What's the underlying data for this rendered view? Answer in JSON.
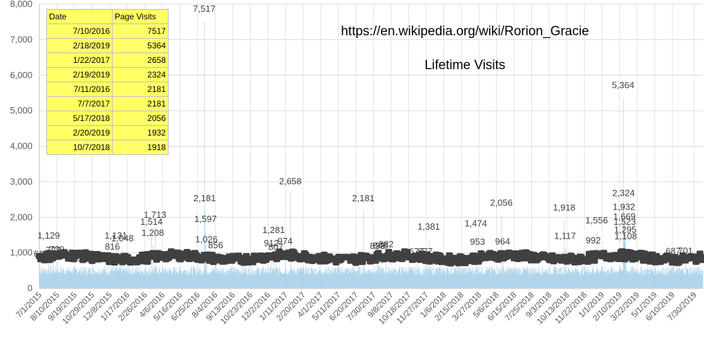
{
  "chart_data": {
    "type": "bar",
    "title": "https://en.wikipedia.org/wiki/Rorion_Gracie",
    "subtitle": "Lifetime Visits",
    "ylim": [
      0,
      8000
    ],
    "y_ticks": [
      "0",
      "1,000",
      "2,000",
      "3,000",
      "4,000",
      "5,000",
      "6,000",
      "7,000",
      "8,000"
    ],
    "x_range": [
      "7/1/2015",
      "8/18/2019"
    ],
    "x_tick_labels": [
      "7/1/2015",
      "8/10/2015",
      "9/19/2015",
      "10/29/2015",
      "12/8/2015",
      "1/17/2016",
      "2/26/2016",
      "4/6/2016",
      "5/16/2016",
      "6/25/2016",
      "8/4/2016",
      "9/13/2016",
      "10/23/2016",
      "12/2/2016",
      "1/11/2017",
      "2/20/2017",
      "4/1/2017",
      "5/11/2017",
      "6/20/2017",
      "7/30/2017",
      "9/8/2017",
      "10/18/2017",
      "11/27/2017",
      "1/6/2018",
      "2/15/2018",
      "3/27/2018",
      "5/6/2018",
      "6/15/2018",
      "7/25/2018",
      "9/3/2018",
      "10/13/2018",
      "11/22/2018",
      "1/1/2019",
      "2/10/2019",
      "3/22/2019",
      "5/1/2019",
      "6/10/2019",
      "7/30/2019"
    ],
    "baseline_visits": 500,
    "series": [
      {
        "color": "#a9d1ea",
        "peaks": [
          {
            "date": "7/10/2016",
            "value": 7517,
            "label": "7,517"
          },
          {
            "date": "2/18/2019",
            "value": 5364,
            "label": "5,364"
          },
          {
            "date": "1/22/2017",
            "value": 2658,
            "label": "2,658"
          },
          {
            "date": "2/19/2019",
            "value": 2324,
            "label": "2,324"
          },
          {
            "date": "7/11/2016",
            "value": 2181,
            "label": "2,181"
          },
          {
            "date": "7/7/2017",
            "value": 2181,
            "label": "2,181"
          },
          {
            "date": "5/17/2018",
            "value": 2056,
            "label": "2,056"
          },
          {
            "date": "2/20/2019",
            "value": 1932,
            "label": "1,932"
          },
          {
            "date": "10/7/2018",
            "value": 1918,
            "label": "1,918"
          },
          {
            "date": "3/20/2016",
            "value": 1713,
            "label": "1,713"
          },
          {
            "date": "2/21/2019",
            "value": 1669,
            "label": "1,669"
          },
          {
            "date": "7/13/2016",
            "value": 1597,
            "label": "1,597"
          },
          {
            "date": "12/20/2018",
            "value": 1556,
            "label": "1,556"
          },
          {
            "date": "2/22/2019",
            "value": 1523,
            "label": "1,523"
          },
          {
            "date": "3/12/2016",
            "value": 1514,
            "label": "1,514"
          },
          {
            "date": "3/20/2018",
            "value": 1474,
            "label": "1,474"
          },
          {
            "date": "12/3/2017",
            "value": 1381,
            "label": "1,381"
          },
          {
            "date": "2/23/2019",
            "value": 1295,
            "label": "1,295"
          },
          {
            "date": "12/15/2016",
            "value": 1281,
            "label": "1,281"
          },
          {
            "date": "3/15/2016",
            "value": 1208,
            "label": "1,208"
          },
          {
            "date": "7/22/2015",
            "value": 1129,
            "label": "1,129"
          },
          {
            "date": "10/9/2018",
            "value": 1117,
            "label": "1,117"
          },
          {
            "date": "12/22/2015",
            "value": 1131,
            "label": "1,131"
          },
          {
            "date": "2/24/2019",
            "value": 1108,
            "label": "1,108"
          },
          {
            "date": "1/6/2016",
            "value": 1048,
            "label": "1,048"
          },
          {
            "date": "7/15/2016",
            "value": 1026,
            "label": "1,026"
          },
          {
            "date": "12/12/2018",
            "value": 992,
            "label": "992"
          },
          {
            "date": "5/20/2018",
            "value": 964,
            "label": "964"
          },
          {
            "date": "3/24/2018",
            "value": 953,
            "label": "953"
          },
          {
            "date": "1/10/2017",
            "value": 974,
            "label": "974"
          },
          {
            "date": "12/10/2016",
            "value": 912,
            "label": "912"
          },
          {
            "date": "8/28/2017",
            "value": 882,
            "label": "882"
          },
          {
            "date": "8/5/2016",
            "value": 856,
            "label": "856"
          },
          {
            "date": "8/15/2017",
            "value": 848,
            "label": "848"
          },
          {
            "date": "8/8/2017",
            "value": 833,
            "label": "833"
          },
          {
            "date": "12/14/2015",
            "value": 816,
            "label": "816"
          },
          {
            "date": "12/20/2016",
            "value": 807,
            "label": "807"
          },
          {
            "date": "8/10/2015",
            "value": 739,
            "label": "739"
          },
          {
            "date": "8/2/2015",
            "value": 723,
            "label": "723"
          },
          {
            "date": "7/10/2019",
            "value": 701,
            "label": "701"
          },
          {
            "date": "6/12/2019",
            "value": 687,
            "label": "687"
          },
          {
            "date": "11/5/2017",
            "value": 677,
            "label": "677"
          },
          {
            "date": "11/25/2017",
            "value": 677,
            "label": "677"
          },
          {
            "date": "7/5/2015",
            "value": 612,
            "label": "612"
          },
          {
            "date": "9/20/2015",
            "value": 485,
            "label": "485"
          }
        ]
      }
    ],
    "legend_table": {
      "headers": [
        "Date",
        "Page Visits"
      ],
      "rows": [
        [
          "7/10/2016",
          "7517"
        ],
        [
          "2/18/2019",
          "5364"
        ],
        [
          "1/22/2017",
          "2658"
        ],
        [
          "2/19/2019",
          "2324"
        ],
        [
          "7/11/2016",
          "2181"
        ],
        [
          "7/7/2017",
          "2181"
        ],
        [
          "5/17/2018",
          "2056"
        ],
        [
          "2/20/2019",
          "1932"
        ],
        [
          "10/7/2018",
          "1918"
        ]
      ]
    },
    "grid": true
  }
}
